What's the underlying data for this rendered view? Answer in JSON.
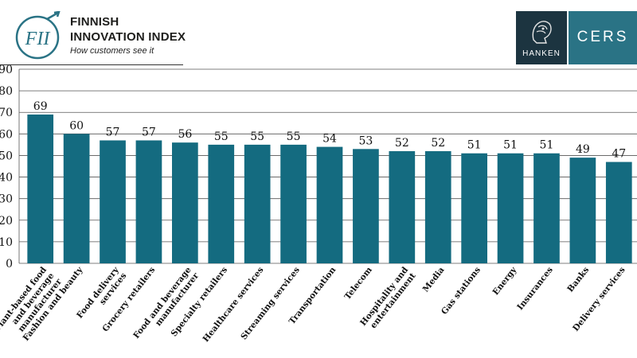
{
  "header": {
    "brand_line1": "FINNISH",
    "brand_line2": "INNOVATION INDEX",
    "tagline": "How customers see it",
    "logo_text": "FII",
    "hanken_label": "HANKEN",
    "cers_label": "CERS"
  },
  "colors": {
    "bar": "#146b80",
    "hanken_bg": "#1c3440",
    "cers_bg": "#2a7385",
    "logo": "#2a7385"
  },
  "chart_data": {
    "type": "bar",
    "title": "",
    "xlabel": "",
    "ylabel": "",
    "ylim": [
      0,
      90
    ],
    "yticks": [
      0,
      10,
      20,
      30,
      40,
      50,
      60,
      70,
      80,
      90
    ],
    "grid": true,
    "categories": [
      "Plant-based food and beverage manufacturer",
      "Fashion and beauty",
      "Food delivery services",
      "Grocery retailers",
      "Food  and beverage manufacturer",
      "Specialty retailers",
      "Healthcare services",
      "Streaming services",
      "Transportation",
      "Telecom",
      "Hospitality and entertainment",
      "Media",
      "Gas stations",
      "Energy",
      "Insurances",
      "Banks",
      "Delivery services"
    ],
    "values": [
      69,
      60,
      57,
      57,
      56,
      55,
      55,
      55,
      54,
      53,
      52,
      52,
      51,
      51,
      51,
      49,
      47
    ],
    "value_labels": [
      "69",
      "60",
      "57",
      "57",
      "56",
      "55",
      "55",
      "55",
      "54",
      "53",
      "52",
      "52",
      "51",
      "51",
      "51",
      "49",
      "47"
    ]
  }
}
